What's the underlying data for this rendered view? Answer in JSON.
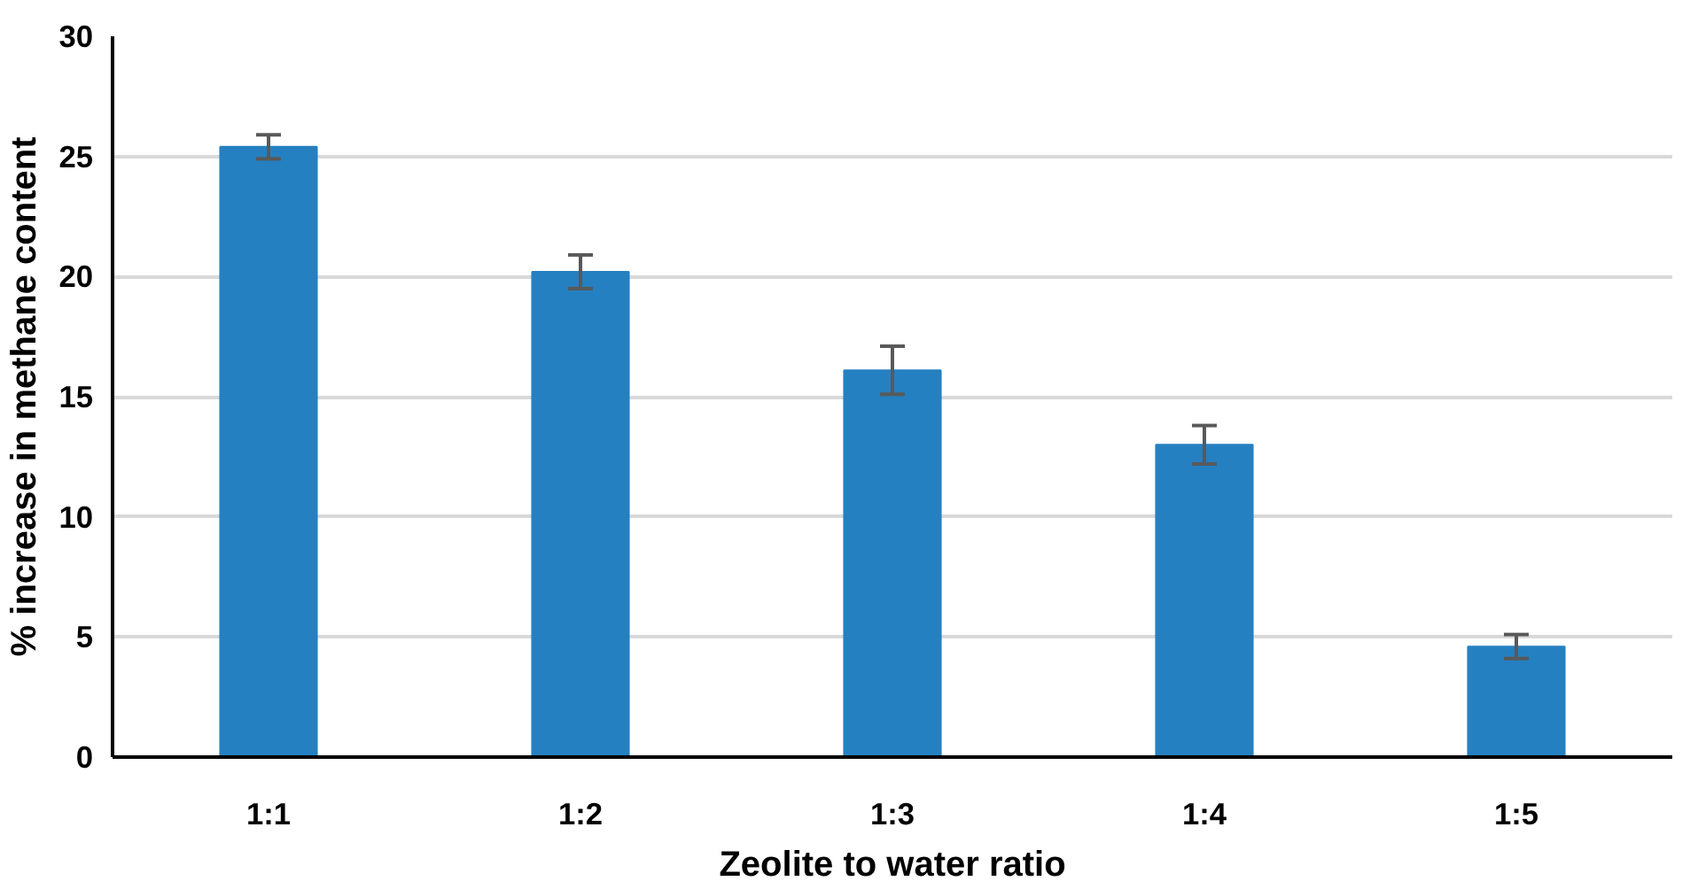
{
  "chart_data": {
    "type": "bar",
    "xlabel": "Zeolite to water ratio",
    "ylabel": "% increase in methane content",
    "categories": [
      "1:1",
      "1:2",
      "1:3",
      "1:4",
      "1:5"
    ],
    "values": [
      25.4,
      20.2,
      16.1,
      13.0,
      4.6
    ],
    "errors": [
      0.5,
      0.7,
      1.0,
      0.8,
      0.5
    ],
    "color": "#2580c1",
    "ylim": [
      0,
      30
    ],
    "yticks": [
      0,
      5,
      10,
      15,
      20,
      25,
      30
    ],
    "grid": "y"
  }
}
